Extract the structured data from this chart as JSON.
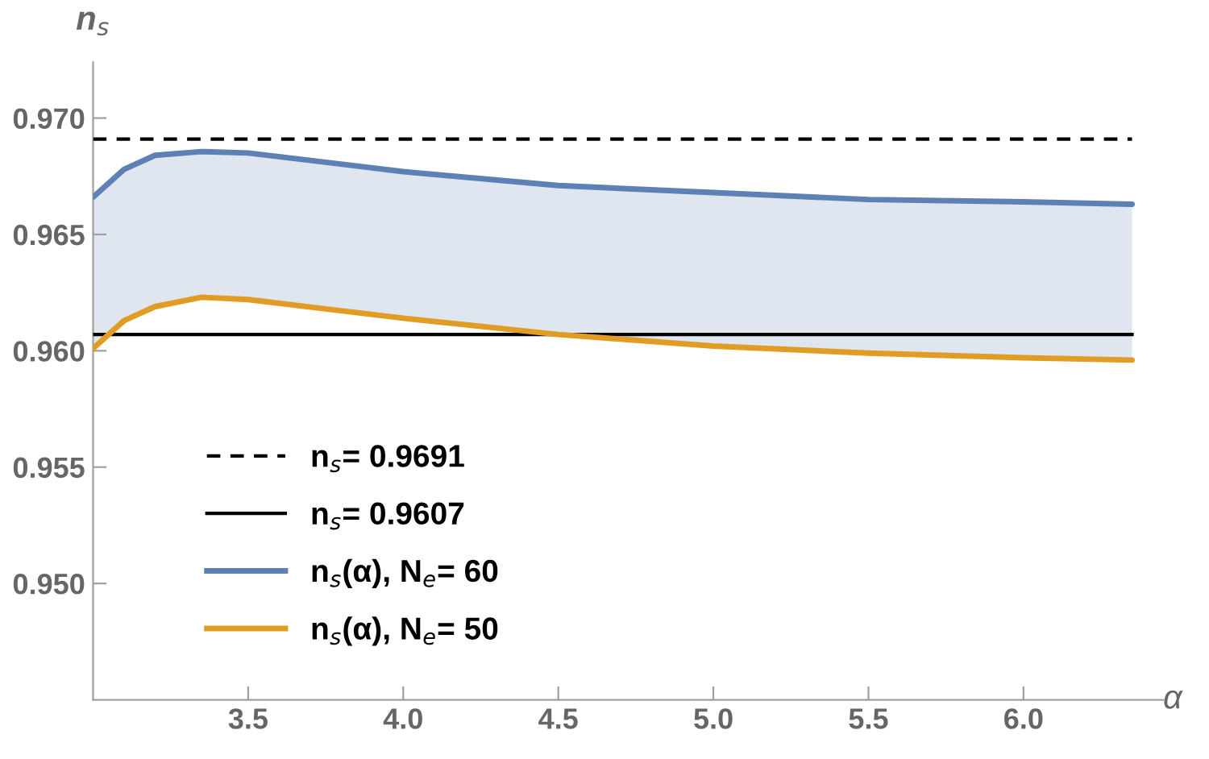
{
  "chart_data": {
    "type": "line",
    "xlabel": "α",
    "ylabel": "n$_{s}$",
    "xlim": [
      3.0,
      6.45
    ],
    "ylim": [
      0.945,
      0.9724
    ],
    "xticks": [
      3.5,
      {
        "value": 4,
        "label": "4.0"
      },
      4.5,
      {
        "value": 5,
        "label": "5.0"
      },
      5.5,
      {
        "value": 6,
        "label": "6.0"
      }
    ],
    "yticks": [
      {
        "value": 0.95,
        "label": "0.950"
      },
      0.955,
      {
        "value": 0.96,
        "label": "0.960"
      },
      0.965,
      {
        "value": 0.97,
        "label": "0.970"
      }
    ],
    "x": [
      3.0,
      3.1,
      3.2,
      3.35,
      3.5,
      3.75,
      4.0,
      4.5,
      5.0,
      5.5,
      6.0,
      6.35
    ],
    "series": [
      {
        "name": "n$_{s}$(α), N$_{e}$= 60",
        "color": "#5e81b5",
        "values": [
          0.9666,
          0.9678,
          0.9684,
          0.96856,
          0.9685,
          0.9681,
          0.9677,
          0.9671,
          0.9668,
          0.9665,
          0.9664,
          0.9663
        ],
        "lower": [
          0.9601,
          0.9613,
          0.9619,
          0.9623,
          0.9622,
          0.9618,
          0.9614,
          0.9607,
          0.9602,
          0.9599,
          0.9597,
          0.9596
        ],
        "upper": [
          0.9666,
          0.9678,
          0.9684,
          0.96856,
          0.9685,
          0.9681,
          0.9677,
          0.9671,
          0.9668,
          0.9665,
          0.9664,
          0.9663
        ]
      },
      {
        "name": "n$_{s}$(α), N$_{e}$= 50",
        "color": "#e19c24",
        "values": [
          0.9601,
          0.9613,
          0.9619,
          0.9623,
          0.9622,
          0.9618,
          0.9614,
          0.9607,
          0.9602,
          0.9599,
          0.9597,
          0.9596
        ]
      }
    ],
    "ref_lines": [
      {
        "axis": "y",
        "value": 0.9691,
        "label": "n$_{s}$= 0.9691",
        "color": "#000000",
        "line_style": "dashed"
      },
      {
        "axis": "y",
        "value": 0.9607,
        "label": "n$_{s}$= 0.9607",
        "color": "#000000",
        "line_style": "solid"
      }
    ],
    "legend": "bottom left",
    "grid": false,
    "marker": "none"
  }
}
